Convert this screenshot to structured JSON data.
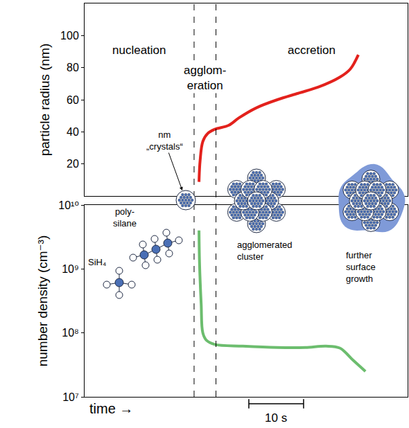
{
  "chart_data": [
    {
      "type": "line",
      "ylabel": "particle radius (nm)",
      "xlim": [
        0,
        59
      ],
      "ylim": [
        0,
        120
      ],
      "yticks": [
        20,
        40,
        60,
        80,
        100
      ],
      "grid": false,
      "tick_labels": "y",
      "x": [
        20.9,
        21.1,
        21.6,
        22.5,
        23.8,
        26.3,
        28.2,
        31.4,
        35.2,
        39.0,
        42.8,
        46.6,
        48.5,
        50.0
      ],
      "values": [
        8.8,
        22,
        34,
        39,
        41.6,
        44,
        48.7,
        55,
        60,
        64,
        68,
        74,
        79,
        88
      ],
      "color": "#e3211c"
    },
    {
      "type": "line",
      "ylabel": "number density (cm⁻³)",
      "xlabel": "time →",
      "log": "y",
      "xlim": [
        0,
        59
      ],
      "ylim": [
        10000000,
        10000000000
      ],
      "yticks": [
        {
          "value": 10000000,
          "label": "10⁷"
        },
        {
          "value": 100000000,
          "label": "10⁸"
        },
        {
          "value": 1000000000,
          "label": "10⁹"
        },
        {
          "value": 10000000000,
          "label": "10¹⁰"
        }
      ],
      "grid": false,
      "tick_labels": "y",
      "x": [
        20.9,
        21.0,
        21.3,
        21.6,
        22.3,
        23.8,
        28.9,
        35.2,
        40.3,
        44.1,
        46.6,
        49.1,
        51.3
      ],
      "values": [
        4000000000,
        1200000000,
        280000000,
        100000000,
        76000000,
        66000000,
        62000000,
        59000000,
        59000000,
        62000000,
        58000000,
        37000000,
        25000000
      ],
      "color": "#6cbd6e",
      "scale_bar": {
        "x": [
          30,
          40
        ],
        "label": "10 s"
      }
    }
  ],
  "phases": {
    "labels": [
      "nucleation",
      "agglom-\neration",
      "accretion"
    ],
    "boundaries": [
      20,
      24
    ]
  },
  "labels": {
    "crystals": "nm\n„crystals“",
    "polysilane": "poly-\nsilane",
    "sih4": "SiH₄",
    "cluster": "agglomerated\ncluster",
    "growth": "further\nsurface\ngrowth"
  }
}
